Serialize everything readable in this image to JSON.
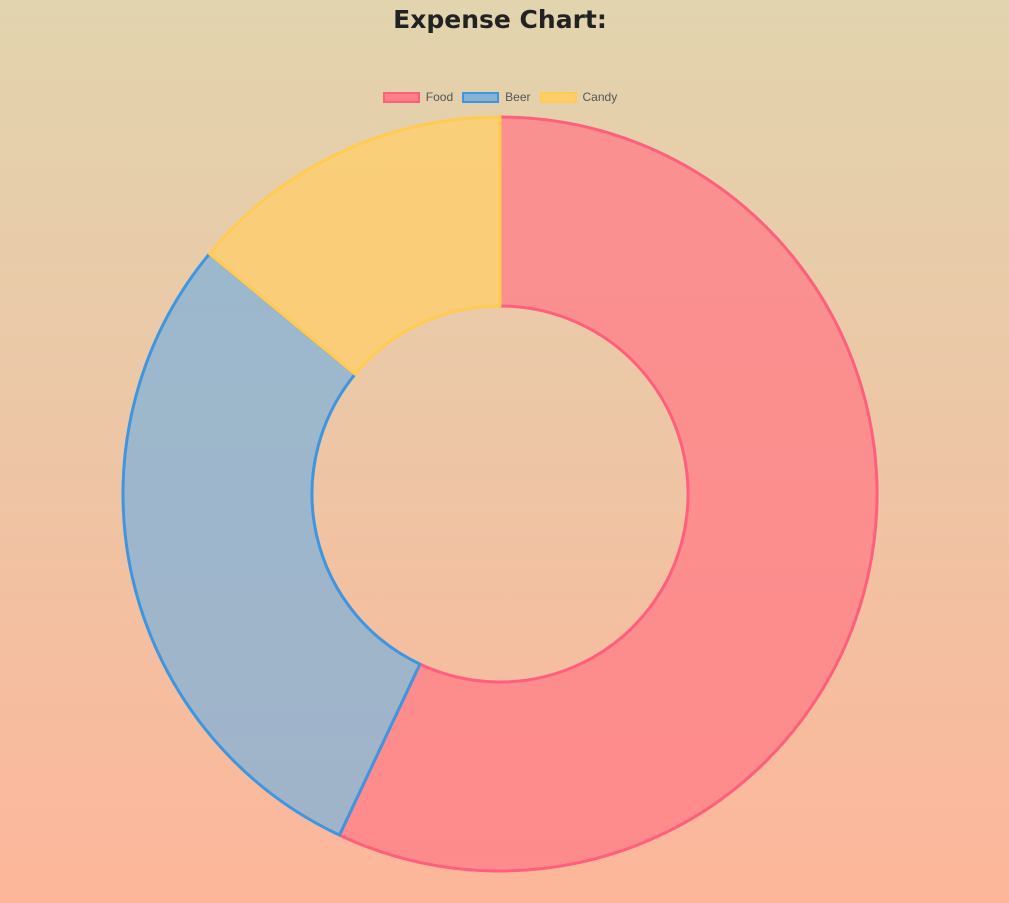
{
  "page": {
    "title": "Expense Chart:"
  },
  "chart_data": {
    "type": "pie",
    "variant": "doughnut",
    "categories": [
      "Food",
      "Beer",
      "Candy"
    ],
    "values": [
      57,
      29,
      14
    ],
    "legend": {
      "position": "top",
      "entries": [
        "Food",
        "Beer",
        "Candy"
      ]
    },
    "colors": {
      "fill": [
        "#ff7f88",
        "#87b2d6",
        "#ffce6a"
      ],
      "border": [
        "#ff5f7d",
        "#3e96e1",
        "#ffcb52"
      ]
    }
  }
}
